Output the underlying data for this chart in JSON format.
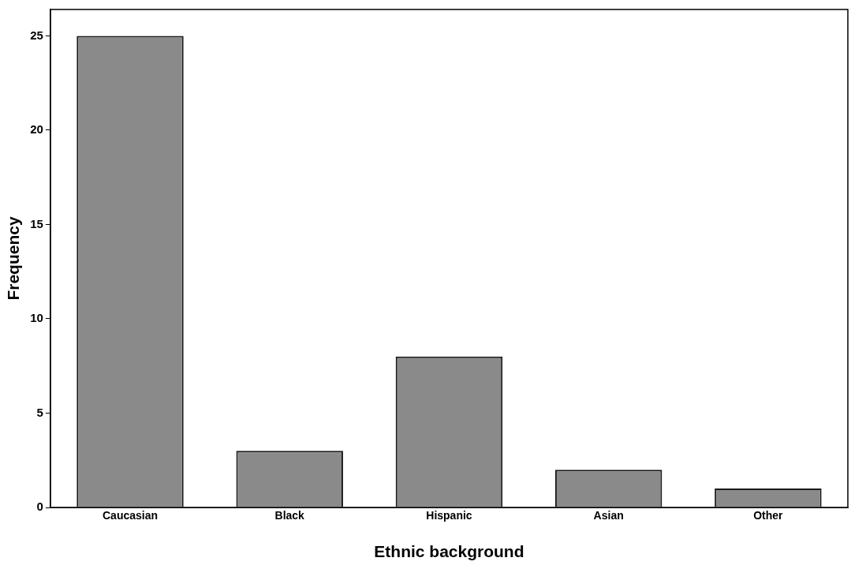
{
  "chart_data": {
    "type": "bar",
    "xlabel": "Ethnic background",
    "ylabel": "Frequency",
    "categories": [
      "Caucasian",
      "Black",
      "Hispanic",
      "Asian",
      "Other"
    ],
    "values": [
      25,
      3,
      8,
      2,
      1
    ],
    "color": "#8a8a8a",
    "ylim": [
      0,
      26.4
    ],
    "yticks": [
      0,
      5,
      10,
      15,
      20,
      25
    ],
    "grid": false,
    "legend": false
  }
}
